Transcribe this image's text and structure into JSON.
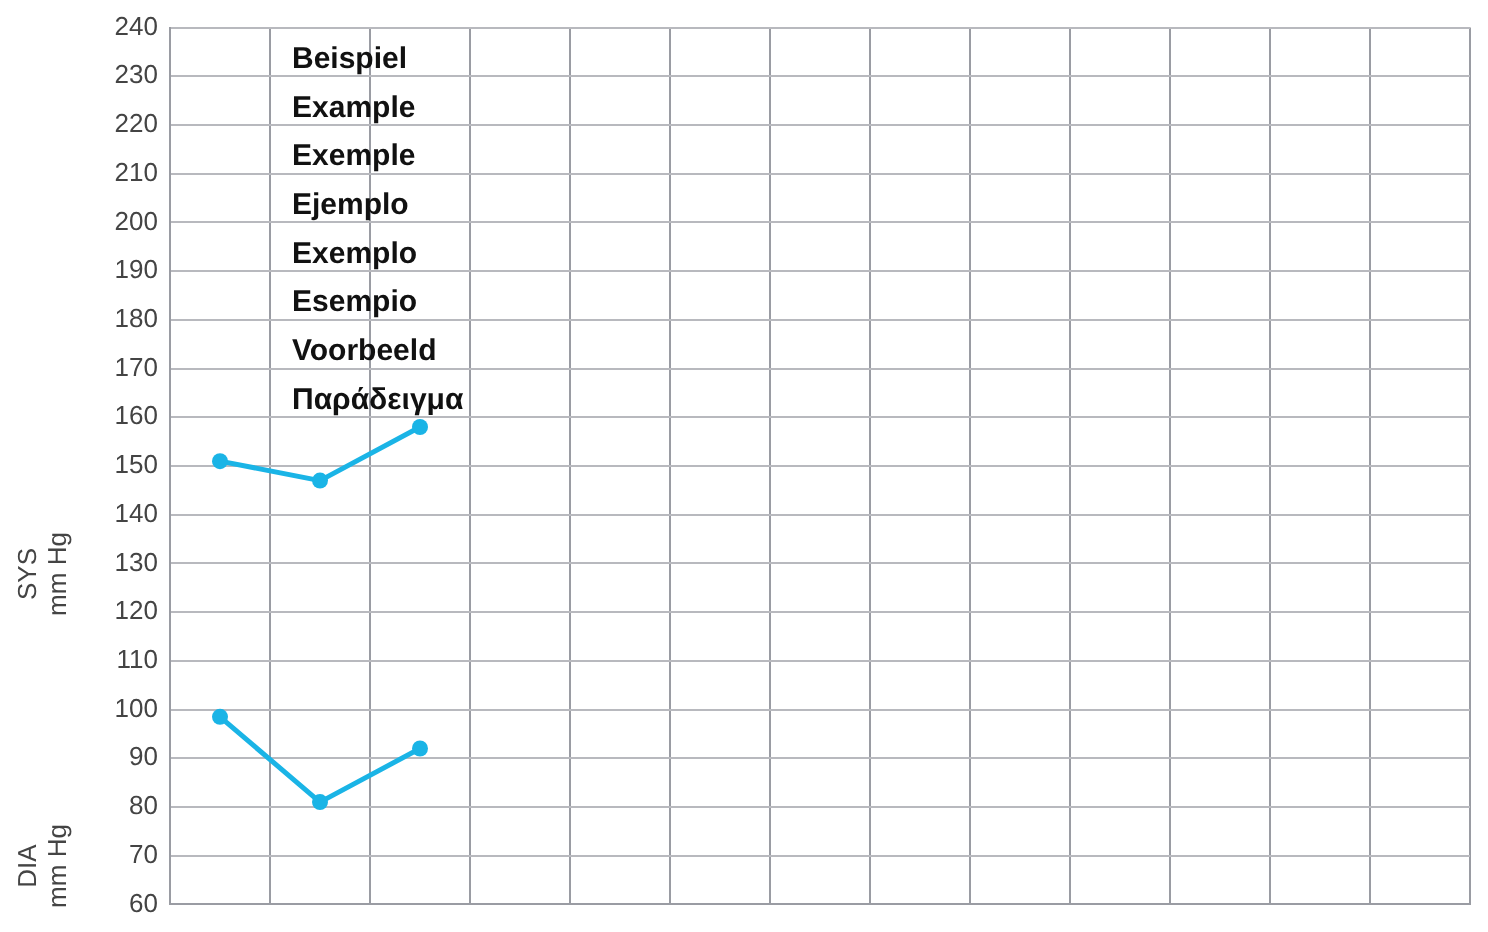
{
  "chart_data": {
    "type": "line",
    "ylabel": "SYS mm Hg",
    "categories": [
      null,
      null,
      null,
      null,
      null,
      null,
      null,
      null,
      null,
      null,
      null,
      null,
      null
    ],
    "series": [
      {
        "color": "#1ab4e6",
        "values": [
          151,
          147,
          158,
          null,
          null,
          null,
          null,
          null,
          null,
          null,
          null,
          null,
          null
        ]
      },
      {
        "color": "#1ab4e6",
        "values": [
          98.5,
          81,
          92,
          null,
          null,
          null,
          null,
          null,
          null,
          null,
          null,
          null,
          null
        ]
      }
    ],
    "ylim": [
      60,
      240
    ],
    "yticks": [
      60,
      70,
      80,
      90,
      100,
      110,
      120,
      130,
      140,
      150,
      160,
      170,
      180,
      190,
      200,
      210,
      220,
      230,
      240
    ],
    "grid": true,
    "tick_labels": "y",
    "marker": "circle",
    "line_style": "solid",
    "annotations": [
      "Beispiel",
      "Example",
      "Exemple",
      "Ejemplo",
      "Exemplo",
      "Esempio",
      "Voorbeeld",
      "Παράδειγμα",
      "DIA mm Hg"
    ]
  }
}
